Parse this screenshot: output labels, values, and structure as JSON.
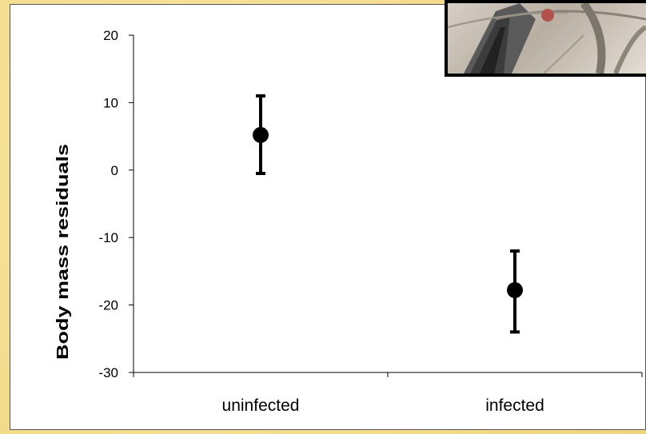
{
  "chart_data": {
    "type": "scatter",
    "title": "",
    "xlabel": "",
    "ylabel": "Body mass residuals",
    "categories": [
      "uninfected",
      "infected"
    ],
    "series": [
      {
        "points": [
          {
            "x": "uninfected",
            "y": 5.2,
            "err_low": -0.5,
            "err_high": 11.0
          },
          {
            "x": "infected",
            "y": -17.8,
            "err_low": -24.0,
            "err_high": -12.0
          }
        ]
      }
    ],
    "ylim": [
      -30,
      20
    ],
    "yticks": [
      20,
      10,
      0,
      -10,
      -20,
      -30
    ],
    "yticklabels": [
      "20",
      "10",
      "0",
      "-10",
      "-20",
      "-30"
    ],
    "grid": false,
    "marker_color": "#000000"
  },
  "photo": {
    "description": "bird-photo"
  }
}
